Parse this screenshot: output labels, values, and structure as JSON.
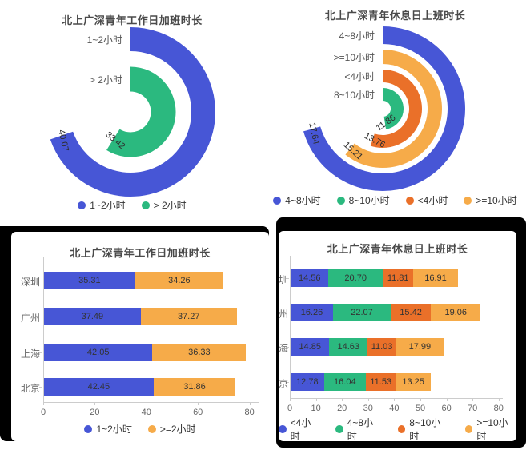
{
  "palette": {
    "blue": "#4756d6",
    "green": "#2bb97f",
    "orange": "#ea7029",
    "light_orange": "#f6ab49"
  },
  "chart_data": [
    {
      "id": "workday_rose",
      "type": "rose_donut",
      "title": "北上广深青年工作日加班时长",
      "rings": [
        {
          "name": "1~2小时",
          "value": 40.07,
          "color": "#4756d6"
        },
        {
          "name": "> 2小时",
          "value": 33.42,
          "color": "#2bb97f"
        }
      ],
      "legend": [
        {
          "label": "1~2小时",
          "color": "#4756d6"
        },
        {
          "label": "> 2小时",
          "color": "#2bb97f"
        }
      ]
    },
    {
      "id": "restday_rose",
      "type": "rose_donut",
      "title": "北上广深青年休息日上班时长",
      "rings": [
        {
          "name": "4~8小时",
          "value": 17.64,
          "color": "#4756d6"
        },
        {
          "name": ">=10小时",
          "value": 15.21,
          "color": "#f6ab49"
        },
        {
          "name": "<4小时",
          "value": 13.76,
          "color": "#ea7029"
        },
        {
          "name": "8~10小时",
          "value": 11.86,
          "color": "#2bb97f"
        }
      ],
      "legend": [
        {
          "label": "4~8小时",
          "color": "#4756d6"
        },
        {
          "label": "8~10小时",
          "color": "#2bb97f"
        },
        {
          "label": "<4小时",
          "color": "#ea7029"
        },
        {
          "label": ">=10小时",
          "color": "#f6ab49"
        }
      ]
    },
    {
      "id": "workday_bars",
      "type": "bar",
      "stacked": true,
      "orientation": "horizontal",
      "title": "北上广深青年工作日加班时长",
      "categories": [
        "深圳",
        "广州",
        "上海",
        "北京"
      ],
      "series": [
        {
          "name": "1~2小时",
          "color": "#4756d6",
          "values": [
            35.31,
            37.49,
            42.05,
            42.45
          ]
        },
        {
          "name": ">=2小时",
          "color": "#f6ab49",
          "values": [
            34.26,
            37.27,
            36.33,
            31.86
          ]
        }
      ],
      "xticks": [
        0,
        20,
        40,
        60,
        80
      ],
      "xlim": [
        0,
        85
      ],
      "legend": [
        {
          "label": "1~2小时",
          "color": "#4756d6"
        },
        {
          "label": ">=2小时",
          "color": "#f6ab49"
        }
      ]
    },
    {
      "id": "restday_bars",
      "type": "bar",
      "stacked": true,
      "orientation": "horizontal",
      "title": "北上广深青年休息日上班时长",
      "categories": [
        "深圳",
        "广州",
        "上海",
        "北京"
      ],
      "series": [
        {
          "name": "<4小时",
          "color": "#4756d6",
          "values": [
            14.56,
            16.26,
            14.85,
            12.78
          ]
        },
        {
          "name": "4~8小时",
          "color": "#2bb97f",
          "values": [
            20.7,
            22.07,
            14.63,
            16.04
          ]
        },
        {
          "name": "8~10小时",
          "color": "#ea7029",
          "values": [
            11.81,
            15.42,
            11.03,
            11.53
          ]
        },
        {
          "name": ">=10小时",
          "color": "#f6ab49",
          "values": [
            16.91,
            19.06,
            17.99,
            13.25
          ]
        }
      ],
      "xticks": [
        0,
        10,
        20,
        30,
        40,
        50,
        60,
        70,
        80
      ],
      "xlim": [
        0,
        87
      ],
      "legend": [
        {
          "label": "<4小时",
          "color": "#4756d6"
        },
        {
          "label": "4~8小时",
          "color": "#2bb97f"
        },
        {
          "label": "8~10小时",
          "color": "#ea7029"
        },
        {
          "label": ">=10小时",
          "color": "#f6ab49"
        }
      ]
    }
  ]
}
